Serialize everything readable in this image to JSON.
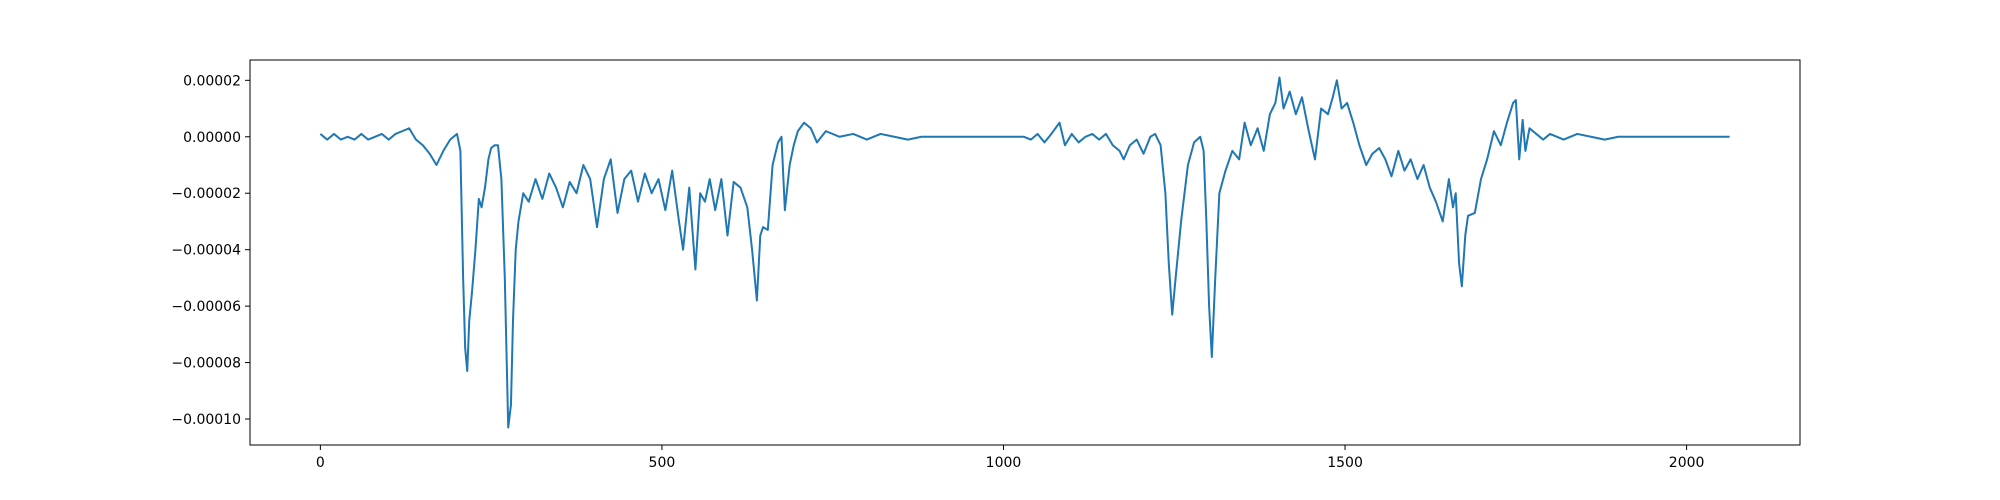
{
  "chart_data": {
    "type": "line",
    "x": [
      0,
      10,
      20,
      30,
      40,
      50,
      60,
      70,
      80,
      90,
      100,
      110,
      120,
      130,
      140,
      150,
      160,
      170,
      180,
      190,
      200,
      205,
      209,
      212,
      215,
      218,
      222,
      227,
      232,
      236,
      241,
      246,
      250,
      255,
      260,
      265,
      270,
      275,
      279,
      282,
      286,
      290,
      297,
      305,
      315,
      325,
      335,
      345,
      355,
      365,
      375,
      385,
      395,
      405,
      415,
      425,
      435,
      445,
      455,
      465,
      475,
      485,
      495,
      505,
      515,
      525,
      531,
      540,
      549,
      556,
      563,
      570,
      578,
      587,
      596,
      605,
      615,
      625,
      632,
      639,
      644,
      648,
      655,
      662,
      670,
      675,
      680,
      687,
      693,
      699,
      708,
      718,
      727,
      740,
      760,
      780,
      800,
      820,
      840,
      860,
      880,
      900,
      950,
      1000,
      1030,
      1040,
      1050,
      1060,
      1070,
      1082,
      1090,
      1100,
      1110,
      1120,
      1130,
      1140,
      1150,
      1160,
      1170,
      1176,
      1185,
      1195,
      1205,
      1215,
      1222,
      1230,
      1237,
      1242,
      1247,
      1252,
      1260,
      1270,
      1279,
      1288,
      1293,
      1297,
      1301,
      1305,
      1310,
      1316,
      1325,
      1335,
      1345,
      1353,
      1362,
      1372,
      1381,
      1390,
      1398,
      1404,
      1410,
      1419,
      1428,
      1437,
      1446,
      1456,
      1465,
      1475,
      1482,
      1488,
      1495,
      1503,
      1512,
      1521,
      1531,
      1540,
      1550,
      1559,
      1568,
      1578,
      1587,
      1596,
      1606,
      1615,
      1624,
      1633,
      1643,
      1652,
      1658,
      1662,
      1667,
      1671,
      1676,
      1680,
      1690,
      1699,
      1708,
      1718,
      1728,
      1737,
      1746,
      1750,
      1755,
      1760,
      1764,
      1770,
      1780,
      1790,
      1800,
      1820,
      1840,
      1860,
      1880,
      1900,
      1950,
      2000,
      2063
    ],
    "series": [
      {
        "color": "#1f77b4",
        "values": [
          1e-06,
          -1e-06,
          1e-06,
          -1e-06,
          0,
          -1e-06,
          1e-06,
          -1e-06,
          0,
          1e-06,
          -1e-06,
          1e-06,
          2e-06,
          3e-06,
          -1e-06,
          -3e-06,
          -6e-06,
          -1e-05,
          -5e-06,
          -1e-06,
          1e-06,
          -5e-06,
          -5e-05,
          -7.5e-05,
          -8.3e-05,
          -6.5e-05,
          -5.5e-05,
          -4e-05,
          -2.2e-05,
          -2.5e-05,
          -1.8e-05,
          -8e-06,
          -4e-06,
          -3e-06,
          -3e-06,
          -1.5e-05,
          -5e-05,
          -0.000103,
          -9.5e-05,
          -6.5e-05,
          -4e-05,
          -3e-05,
          -2e-05,
          -2.3e-05,
          -1.5e-05,
          -2.2e-05,
          -1.3e-05,
          -1.8e-05,
          -2.5e-05,
          -1.6e-05,
          -2e-05,
          -1e-05,
          -1.5e-05,
          -3.2e-05,
          -1.5e-05,
          -8e-06,
          -2.7e-05,
          -1.5e-05,
          -1.2e-05,
          -2.3e-05,
          -1.3e-05,
          -2e-05,
          -1.5e-05,
          -2.6e-05,
          -1.2e-05,
          -3e-05,
          -4e-05,
          -1.8e-05,
          -4.7e-05,
          -2e-05,
          -2.3e-05,
          -1.5e-05,
          -2.6e-05,
          -1.5e-05,
          -3.5e-05,
          -1.6e-05,
          -1.8e-05,
          -2.5e-05,
          -4e-05,
          -5.8e-05,
          -3.5e-05,
          -3.2e-05,
          -3.3e-05,
          -1e-05,
          -2e-06,
          0,
          -2.6e-05,
          -1e-05,
          -3e-06,
          2e-06,
          5e-06,
          3e-06,
          -2e-06,
          2e-06,
          0,
          1e-06,
          -1e-06,
          1e-06,
          0,
          -1e-06,
          0,
          0,
          0,
          0,
          0,
          -1e-06,
          1e-06,
          -2e-06,
          1e-06,
          5e-06,
          -3e-06,
          1e-06,
          -2e-06,
          0,
          1e-06,
          -1e-06,
          1e-06,
          -3e-06,
          -5e-06,
          -8e-06,
          -3e-06,
          -1e-06,
          -6e-06,
          0,
          1e-06,
          -3e-06,
          -2e-05,
          -4.5e-05,
          -6.3e-05,
          -5e-05,
          -3e-05,
          -1e-05,
          -2e-06,
          0,
          -5e-06,
          -3e-05,
          -6e-05,
          -7.8e-05,
          -5e-05,
          -2e-05,
          -1.2e-05,
          -5e-06,
          -8e-06,
          5e-06,
          -3e-06,
          3e-06,
          -5e-06,
          8e-06,
          1.2e-05,
          2.1e-05,
          1e-05,
          1.6e-05,
          8e-06,
          1.4e-05,
          3e-06,
          -8e-06,
          1e-05,
          8e-06,
          1.4e-05,
          2e-05,
          1e-05,
          1.2e-05,
          5e-06,
          -3e-06,
          -1e-05,
          -6e-06,
          -4e-06,
          -8e-06,
          -1.4e-05,
          -5e-06,
          -1.2e-05,
          -8e-06,
          -1.5e-05,
          -1e-05,
          -1.8e-05,
          -2.3e-05,
          -3e-05,
          -1.5e-05,
          -2.5e-05,
          -2e-05,
          -4.5e-05,
          -5.3e-05,
          -3.5e-05,
          -2.8e-05,
          -2.7e-05,
          -1.5e-05,
          -8e-06,
          2e-06,
          -3e-06,
          5e-06,
          1.2e-05,
          1.3e-05,
          -8e-06,
          6e-06,
          -5e-06,
          3e-06,
          1e-06,
          -1e-06,
          1e-06,
          -1e-06,
          1e-06,
          0,
          -1e-06,
          0,
          0,
          0,
          0
        ]
      }
    ],
    "xlim": [
      -103,
      2166
    ],
    "xticks": [
      0,
      500,
      1000,
      1500,
      2000
    ],
    "ylim": [
      -0.0001092,
      2.72e-05
    ],
    "yticks": [
      {
        "value": 2e-05,
        "label": "0.00002"
      },
      {
        "value": 0,
        "label": "0.00000"
      },
      {
        "value": -2e-05,
        "label": "−0.00002"
      },
      {
        "value": -4e-05,
        "label": "−0.00004"
      },
      {
        "value": -6e-05,
        "label": "−0.00006"
      },
      {
        "value": -8e-05,
        "label": "−0.00008"
      },
      {
        "value": -0.0001,
        "label": "−0.00010"
      }
    ]
  }
}
